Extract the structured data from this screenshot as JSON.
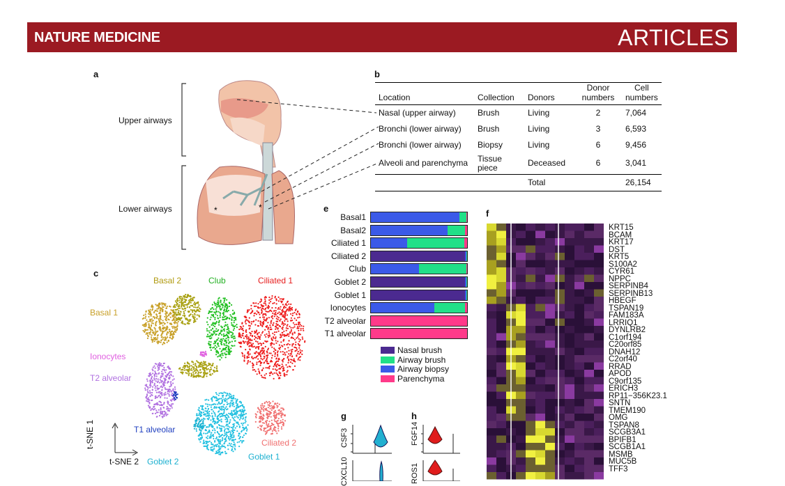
{
  "header": {
    "journal": "NATURE MEDICINE",
    "section": "ARTICLES"
  },
  "panels": {
    "a": "a",
    "b": "b",
    "c": "c",
    "e": "e",
    "f": "f",
    "g": "g",
    "h": "h"
  },
  "panel_a": {
    "upper": "Upper airways",
    "lower": "Lower airways"
  },
  "table": {
    "headers": [
      "Location",
      "Collection",
      "Donors",
      "Donor numbers",
      "Cell numbers"
    ],
    "rows": [
      [
        "Nasal (upper airway)",
        "Brush",
        "Living",
        "2",
        "7,064"
      ],
      [
        "Bronchi (lower airway)",
        "Brush",
        "Living",
        "3",
        "6,593"
      ],
      [
        "Bronchi (lower airway)",
        "Biopsy",
        "Living",
        "6",
        "9,456"
      ],
      [
        "Alveoli and parenchyma",
        "Tissue piece",
        "Deceased",
        "6",
        "3,041"
      ]
    ],
    "total_label": "Total",
    "total_value": "26,154"
  },
  "tsne": {
    "clusters": [
      {
        "name": "Basal 1",
        "color": "#c8a028"
      },
      {
        "name": "Basal 2",
        "color": "#a8a010"
      },
      {
        "name": "Club",
        "color": "#22c022"
      },
      {
        "name": "Ciliated 1",
        "color": "#ee1c1c"
      },
      {
        "name": "Ionocytes",
        "color": "#e060e0"
      },
      {
        "name": "T2 alveolar",
        "color": "#b070e0"
      },
      {
        "name": "T1 alveolar",
        "color": "#1f3fbf"
      },
      {
        "name": "Goblet 2",
        "color": "#1cb0d0"
      },
      {
        "name": "Goblet 1",
        "color": "#22c0e0"
      },
      {
        "name": "Ciliated 2",
        "color": "#f07070"
      }
    ],
    "axis_y": "t-SNE 1",
    "axis_x": "t-SNE 2"
  },
  "chart_data": {
    "type": "bar",
    "stacked": true,
    "categories": [
      "Basal1",
      "Basal2",
      "Ciliated 1",
      "Ciliated 2",
      "Club",
      "Goblet 2",
      "Goblet 1",
      "Ionocytes",
      "T2 alveolar",
      "T1 alveolar"
    ],
    "series": [
      {
        "name": "Nasal brush",
        "color": "#4b2a90",
        "values": [
          0,
          0,
          0,
          98,
          0,
          98,
          98,
          0,
          0,
          0
        ]
      },
      {
        "name": "Airway biopsy",
        "color": "#3b5ae8",
        "values": [
          92,
          80,
          38,
          1,
          50,
          1,
          1,
          66,
          0,
          0
        ]
      },
      {
        "name": "Airway brush",
        "color": "#22e088",
        "values": [
          7,
          18,
          59,
          1,
          49,
          1,
          1,
          32,
          0,
          0
        ]
      },
      {
        "name": "Parenchyma",
        "color": "#ff3a8a",
        "values": [
          1,
          2,
          3,
          0,
          1,
          0,
          0,
          2,
          100,
          100
        ]
      }
    ]
  },
  "heatmap": {
    "genes": [
      "KRT15",
      "BCAM",
      "KRT17",
      "DST",
      "KRT5",
      "S100A2",
      "CYR61",
      "NPPC",
      "SERPINB4",
      "SERPINB13",
      "HBEGF",
      "TSPAN19",
      "FAM183A",
      "LRRIQ1",
      "DYNLRB2",
      "C1orf194",
      "C20orf85",
      "DNAH12",
      "C2orf40",
      "RRAD",
      "APOD",
      "C9orf135",
      "ERICH3",
      "RP11−356K23.1",
      "SNTN",
      "TMEM190",
      "OMG",
      "TSPAN8",
      "SCGB3A1",
      "BPIFB1",
      "SCGB1A1",
      "MSMB",
      "MUC5B",
      "TFF3"
    ]
  },
  "panel_g": {
    "genes": [
      "CSF3",
      "CXCL10"
    ]
  },
  "panel_h": {
    "genes": [
      "FGF14",
      "ROS1"
    ]
  }
}
